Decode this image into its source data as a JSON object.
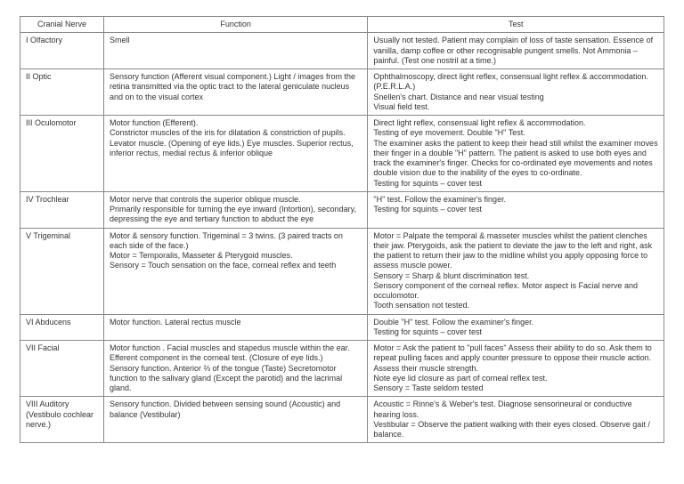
{
  "table": {
    "columns": [
      "Cranial Nerve",
      "Function",
      "Test"
    ],
    "rows": [
      {
        "nerve": "I Olfactory",
        "function": "Smell",
        "test": "Usually not tested. Patient may complain of loss of taste sensation. Essence of vanilla, damp coffee or other recognisable pungent smells. Not Ammonia – painful. (Test one nostril at a time.)"
      },
      {
        "nerve": "II Optic",
        "function": "Sensory function (Afferent visual component.) Light / images from the retina transmitted via the optic tract to the lateral geniculate nucleus and on to the visual cortex",
        "test": "Ophthalmoscopy, direct light reflex, consensual light reflex & accommodation. (P.E.R.L.A.)\nSnellen's chart. Distance and near visual testing\nVisual field test."
      },
      {
        "nerve": "III Oculomotor",
        "function": "Motor function (Efferent).\nConstrictor muscles of the iris for dilatation & constriction of pupils. Levator muscle. (Opening of eye lids.) Eye muscles. Superior rectus, inferior rectus, medial rectus & inferior oblique",
        "test": "Direct light reflex, consensual light reflex & accommodation.\nTesting of eye movement. Double \"H\" Test.\nThe examiner asks the patient to keep their head still whilst the examiner moves their finger in a double \"H\" pattern. The patient is asked to use both eyes and track the examiner's finger. Checks for co-ordinated eye movements and notes double vision due to the inability of the eyes to co-ordinate.\nTesting for squints – cover test"
      },
      {
        "nerve": "IV Trochlear",
        "function": "Motor nerve that controls the superior oblique muscle.\nPrimarily responsible for turning the eye inward (Intortion), secondary, depressing the eye and tertiary function to abduct the eye",
        "test": "\"H\" test. Follow the examiner's finger.\nTesting for squints – cover test"
      },
      {
        "nerve": "V Trigeminal",
        "function": "Motor & sensory function. Trigeminal = 3 twins. (3 paired tracts on each side of the face.)\nMotor = Temporalis, Masseter & Pterygoid muscles.\nSensory = Touch sensation on the face, corneal reflex and teeth",
        "test": "Motor = Palpate the temporal & masseter muscles whilst the patient clenches their jaw. Pterygoids, ask the patient to deviate the jaw to the left and right, ask the patient to return their jaw to the midline whilst you apply opposing force to assess muscle power.\nSensory = Sharp & blunt discrimination test.\nSensory component of the corneal reflex. Motor aspect is Facial nerve and occulomotor.\nTooth sensation not tested."
      },
      {
        "nerve": "VI Abducens",
        "function": "Motor function. Lateral rectus muscle",
        "test": "Double \"H\" test. Follow the examiner's finger.\nTesting for squints – cover test"
      },
      {
        "nerve": "VII Facial",
        "function": "Motor function . Facial muscles and stapedus muscle within the ear. Efferent component in the corneal test. (Closure of eye lids.)\nSensory function. Anterior ⅔ of the tongue (Taste) Secretomotor function to the salivary gland (Except the parotid) and the lacrimal gland.",
        "test": "Motor = Ask the patient to \"pull faces\" Assess their ability to do so. Ask them to repeat pulling faces and apply counter pressure to oppose their muscle action. Assess their muscle strength.\nNote eye lid closure as part of corneal reflex test.\nSensory = Taste seldom tested"
      },
      {
        "nerve": "VIII Auditory\n(Vestibulo cochlear nerve.)",
        "function": "Sensory function. Divided between sensing sound (Acoustic) and balance (Vestibular)",
        "test": "Acoustic = Rinne's & Weber's test. Diagnose sensorineural or conductive hearing loss.\nVestibular = Observe the patient walking with their eyes closed. Observe gait / balance."
      }
    ]
  }
}
